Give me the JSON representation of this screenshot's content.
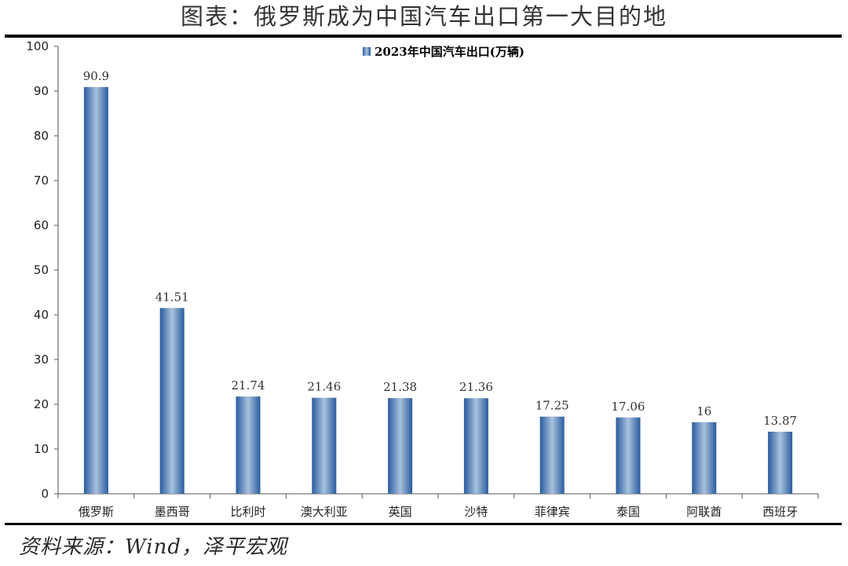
{
  "title": "图表：俄罗斯成为中国汽车出口第一大目的地",
  "source": "资料来源：Wind，泽平宏观",
  "chart_data": {
    "type": "bar",
    "categories": [
      "俄罗斯",
      "墨西哥",
      "比利时",
      "澳大利亚",
      "英国",
      "沙特",
      "菲律宾",
      "泰国",
      "阿联酋",
      "西班牙"
    ],
    "series": [
      {
        "name": "2023年中国汽车出口(万辆)",
        "values": [
          90.9,
          41.51,
          21.74,
          21.46,
          21.38,
          21.36,
          17.25,
          17.06,
          16,
          13.87
        ],
        "labels": [
          "90.9",
          "41.51",
          "21.74",
          "21.46",
          "21.38",
          "21.36",
          "17.25",
          "17.06",
          "16",
          "13.87"
        ],
        "color": "#3a6fb0"
      }
    ],
    "ylim": [
      0,
      100
    ],
    "yticks": [
      0,
      10,
      20,
      30,
      40,
      50,
      60,
      70,
      80,
      90,
      100
    ],
    "grid": false,
    "legend": "top-center"
  }
}
